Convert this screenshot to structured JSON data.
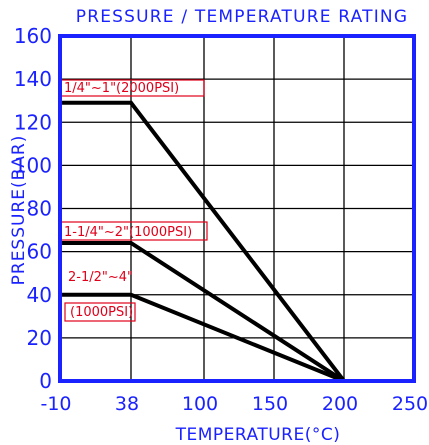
{
  "chart_data": {
    "type": "line",
    "title": "PRESSURE / TEMPERATURE RATING",
    "xlabel": "TEMPERATURE(°C)",
    "ylabel": "PRESSURE(BAR)",
    "xticks": [
      "-10",
      "38",
      "100",
      "150",
      "200",
      "250"
    ],
    "yticks": [
      "0",
      "20",
      "40",
      "60",
      "80",
      "100",
      "120",
      "140",
      "160"
    ],
    "ylim": [
      0,
      160
    ],
    "grid": true,
    "series": [
      {
        "name": "1/4\"~1\"(2000PSI)",
        "points": [
          [
            -10,
            129
          ],
          [
            38,
            129
          ],
          [
            200,
            0
          ]
        ]
      },
      {
        "name": "1-1/4\"~2\"(1000PSI)",
        "points": [
          [
            -10,
            64
          ],
          [
            38,
            64
          ],
          [
            200,
            0
          ]
        ]
      },
      {
        "name": "2-1/2\"~4\" (1000PSI)",
        "points": [
          [
            -10,
            40
          ],
          [
            38,
            40
          ],
          [
            200,
            0
          ]
        ]
      }
    ],
    "labels": [
      {
        "text": "1/4\"~1\"(2000PSI)",
        "series": 0
      },
      {
        "text": "1-1/4\"~2\"(1000PSI)",
        "series": 1
      },
      {
        "text": "2-1/2\"~4\"",
        "series": 2
      },
      {
        "text": "(1000PSI)",
        "series": 2
      }
    ],
    "colors": {
      "axis": "#1a22ff",
      "grid": "#000000",
      "series": "#000000",
      "label": "#e0001a",
      "label_box": "#e0001a"
    }
  }
}
